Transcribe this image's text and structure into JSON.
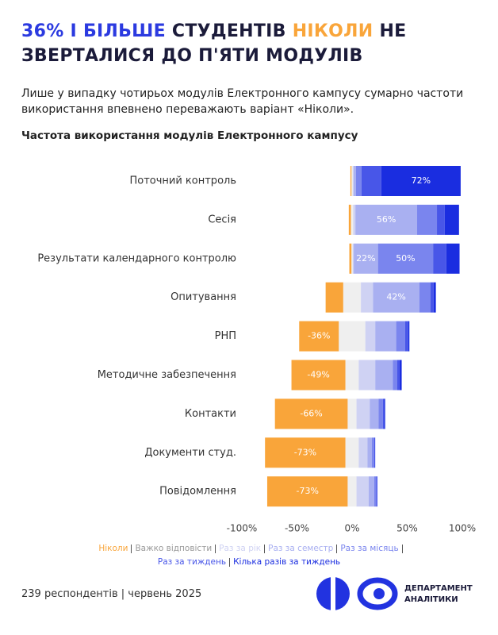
{
  "chart_data": {
    "type": "diverging_stacked_bar",
    "title_parts": [
      "36% І БІЛЬШЕ",
      " СТУДЕНТІВ ",
      "НІКОЛИ",
      " НЕ ЗВЕРТАЛИСЯ ДО П'ЯТИ МОДУЛІВ"
    ],
    "subtitle": "Лише у випадку чотирьох модулів Електронного кампусу сумарно частоти використання впевнено переважають варіант «Ніколи».",
    "chart_title": "Частота використання модулів Електронного кампусу",
    "categories": [
      "Поточний контроль",
      "Сесія",
      "Результати календарного контролю",
      "Опитування",
      "РНП",
      "Методичне забезпечення",
      "Контакти",
      "Документи студ.",
      "Повідомлення"
    ],
    "series": [
      {
        "name": "Ніколи",
        "color": "#f9a53a",
        "values": [
          -1,
          -2,
          -2,
          -16,
          -36,
          -49,
          -66,
          -73,
          -73
        ],
        "value_labels": [
          null,
          null,
          null,
          null,
          "-36%",
          "-49%",
          "-66%",
          "-73%",
          "-73%"
        ]
      },
      {
        "name": "Важко відповісти",
        "color": "#efefef",
        "values": [
          1,
          2,
          1,
          16,
          24,
          12,
          8,
          12,
          8
        ]
      },
      {
        "name": "Раз за рік",
        "color": "#cfd2f3",
        "values": [
          1,
          2,
          1,
          11,
          9,
          15,
          12,
          8,
          11
        ]
      },
      {
        "name": "Раз за семестр",
        "color": "#a9b0f1",
        "values": [
          2,
          56,
          22,
          42,
          19,
          16,
          8,
          4,
          5
        ],
        "value_labels": [
          null,
          "56%",
          "22%",
          "42%",
          null,
          null,
          null,
          null,
          null
        ]
      },
      {
        "name": "Раз за місяць",
        "color": "#7a85ee",
        "values": [
          5,
          18,
          50,
          10,
          8,
          4,
          4,
          2,
          2
        ],
        "value_labels": [
          null,
          null,
          "50%",
          null,
          null,
          null,
          null,
          null,
          null
        ]
      },
      {
        "name": "Раз за тиждень",
        "color": "#4856e8",
        "values": [
          18,
          7,
          12,
          3,
          3,
          2,
          1,
          1,
          1
        ]
      },
      {
        "name": "Кілька разів за тиждень",
        "color": "#1a2de0",
        "values": [
          72,
          13,
          12,
          2,
          1,
          2,
          1,
          0,
          0
        ],
        "value_labels": [
          "72%",
          null,
          null,
          null,
          null,
          null,
          null,
          null,
          null
        ]
      }
    ],
    "xlim": [
      -100,
      100
    ],
    "xticks": [
      {
        "value": -100,
        "label": "-100%"
      },
      {
        "value": -50,
        "label": "-50%"
      },
      {
        "value": 0,
        "label": "0%"
      },
      {
        "value": 50,
        "label": "50%"
      },
      {
        "value": 100,
        "label": "100%"
      }
    ],
    "footer": "239 респондентів | червень 2025",
    "logo_text": [
      "ДЕПАРТАМЕНТ",
      "АНАЛІТИКИ"
    ]
  }
}
